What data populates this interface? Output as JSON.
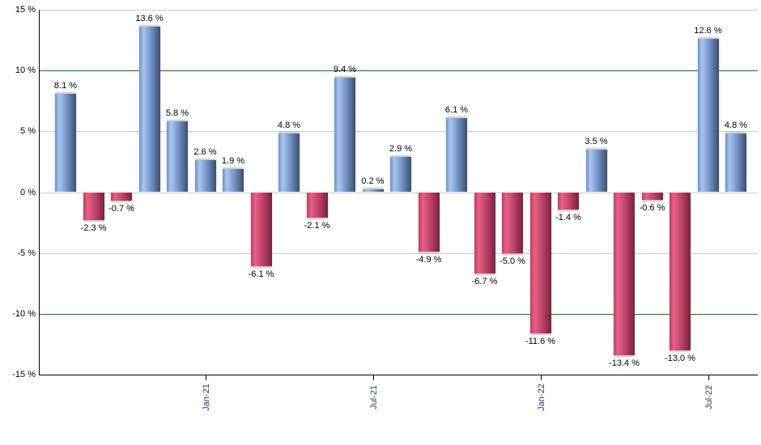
{
  "chart_data": {
    "type": "bar",
    "title": "",
    "xlabel": "",
    "ylabel": "",
    "ylim": [
      -15,
      15
    ],
    "grid": "horizontal",
    "legend": "none",
    "bars": [
      {
        "value": 8.1,
        "label": "8.1 %"
      },
      {
        "value": -2.3,
        "label": "-2.3 %"
      },
      {
        "value": -0.7,
        "label": "-0.7 %"
      },
      {
        "value": 13.6,
        "label": "13.6 %"
      },
      {
        "value": 5.8,
        "label": "5.8 %"
      },
      {
        "value": 2.6,
        "label": "2.6 %"
      },
      {
        "value": 1.9,
        "label": "1.9 %"
      },
      {
        "value": -6.1,
        "label": "-6.1 %"
      },
      {
        "value": 4.8,
        "label": "4.8 %"
      },
      {
        "value": -2.1,
        "label": "-2.1 %"
      },
      {
        "value": 9.4,
        "label": "9.4 %"
      },
      {
        "value": 0.2,
        "label": "0.2 %"
      },
      {
        "value": 2.9,
        "label": "2.9 %"
      },
      {
        "value": -4.9,
        "label": "-4.9 %"
      },
      {
        "value": 6.1,
        "label": "6.1 %"
      },
      {
        "value": -6.7,
        "label": "-6.7 %"
      },
      {
        "value": -5.0,
        "label": "-5.0 %"
      },
      {
        "value": -11.6,
        "label": "-11.6 %"
      },
      {
        "value": -1.4,
        "label": "-1.4 %"
      },
      {
        "value": 3.5,
        "label": "3.5 %"
      },
      {
        "value": -13.4,
        "label": "-13.4 %"
      },
      {
        "value": -0.6,
        "label": "-0.6 %"
      },
      {
        "value": -13.0,
        "label": "-13.0 %"
      },
      {
        "value": 12.6,
        "label": "12.6 %"
      },
      {
        "value": 4.8,
        "label": "4.8 %"
      }
    ],
    "x_ticks": [
      {
        "label": "Jan-21",
        "bar_index": 5
      },
      {
        "label": "Jul-21",
        "bar_index": 11
      },
      {
        "label": "Jan-22",
        "bar_index": 17
      },
      {
        "label": "Jul-22",
        "bar_index": 23
      }
    ],
    "y_ticks": [
      {
        "label": "15 %",
        "value": 15
      },
      {
        "label": "10 %",
        "value": 10
      },
      {
        "label": "5 %",
        "value": 5
      },
      {
        "label": "0 %",
        "value": 0
      },
      {
        "label": "-5 %",
        "value": -5
      },
      {
        "label": "-10 %",
        "value": -10
      },
      {
        "label": "-15 %",
        "value": -15
      }
    ],
    "threshold_values": [
      10,
      -10
    ],
    "colors": {
      "positive_gradient": [
        "#6d92c8",
        "#a9c4f0",
        "#7e9ed2",
        "#3a4f73"
      ],
      "negative_gradient": [
        "#bd3d60",
        "#ea6087",
        "#c74a6e",
        "#7c2040"
      ],
      "gridline": "#cccccc",
      "threshold": "#007f00",
      "axis": "#000000",
      "value_label": "#000000",
      "tick_label": "#1f3d5c",
      "background": "#ffffff"
    }
  }
}
